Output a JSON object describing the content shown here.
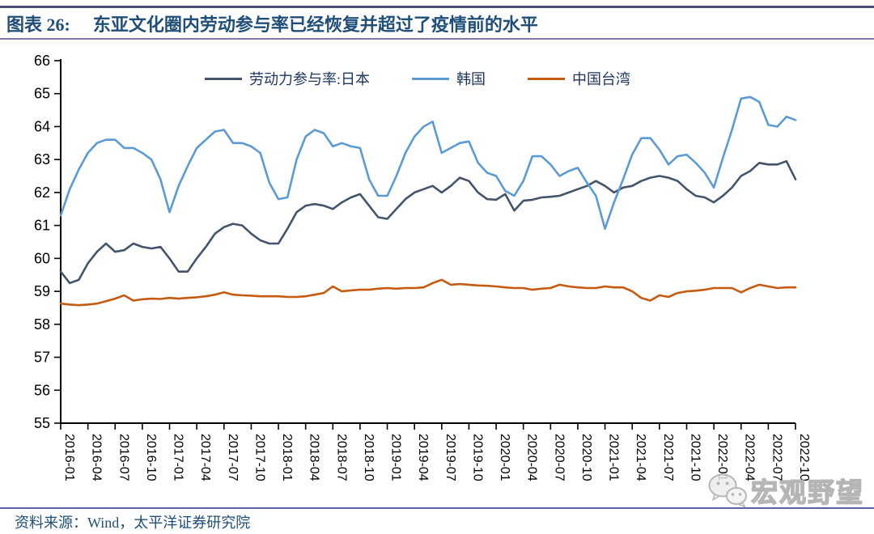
{
  "header": {
    "figure_label": "图表 26:",
    "title": "东亚文化圈内劳动参与率已经恢复并超过了疫情前的水平"
  },
  "footer": {
    "source": "资料来源：Wind，太平洋证券研究院"
  },
  "watermark": {
    "icon": "wechat-icon",
    "text": "宏观野望"
  },
  "theme": {
    "title-color": "#1F4E79",
    "divider-dark": "#4C4C78",
    "divider-light": "#7A7AA6",
    "divider-bottom": "#5D5DA0",
    "axis-color": "#000000",
    "watermark-color": "#ABABAB"
  },
  "chart_data": {
    "type": "line",
    "x_start": "2016-01",
    "x_end": "2022-10",
    "x_frequency": "monthly",
    "x_tick_labels": [
      "2016-01",
      "2016-04",
      "2016-07",
      "2016-10",
      "2017-01",
      "2017-04",
      "2017-07",
      "2017-10",
      "2018-01",
      "2018-04",
      "2018-07",
      "2018-10",
      "2019-01",
      "2019-04",
      "2019-07",
      "2019-10",
      "2020-01",
      "2020-04",
      "2020-07",
      "2020-10",
      "2021-01",
      "2021-04",
      "2021-07",
      "2021-10",
      "2022-01",
      "2022-04",
      "2022-07",
      "2022-10"
    ],
    "ylim": [
      55,
      66
    ],
    "y_tick_step": 1,
    "grid": false,
    "legend_position": "top",
    "series": [
      {
        "name": "劳动力参与率:日本",
        "color": "#44546A",
        "values": [
          59.6,
          59.25,
          59.35,
          59.85,
          60.2,
          60.45,
          60.2,
          60.25,
          60.45,
          60.35,
          60.3,
          60.35,
          60.0,
          59.6,
          59.6,
          60.0,
          60.35,
          60.75,
          60.95,
          61.05,
          61.0,
          60.75,
          60.55,
          60.45,
          60.45,
          60.9,
          61.4,
          61.6,
          61.65,
          61.6,
          61.5,
          61.7,
          61.85,
          61.95,
          61.6,
          61.25,
          61.2,
          61.5,
          61.8,
          62.0,
          62.1,
          62.2,
          62.0,
          62.2,
          62.45,
          62.35,
          62.0,
          61.8,
          61.78,
          61.95,
          61.45,
          61.75,
          61.78,
          61.85,
          61.87,
          61.9,
          62.0,
          62.1,
          62.2,
          62.35,
          62.2,
          62.0,
          62.15,
          62.2,
          62.35,
          62.45,
          62.5,
          62.45,
          62.35,
          62.1,
          61.9,
          61.85,
          61.7,
          61.9,
          62.15,
          62.5,
          62.65,
          62.9,
          62.85,
          62.85,
          62.95,
          62.4
        ]
      },
      {
        "name": "韩国",
        "color": "#5B9BD5",
        "values": [
          61.3,
          62.1,
          62.7,
          63.2,
          63.5,
          63.6,
          63.6,
          63.35,
          63.35,
          63.2,
          63.0,
          62.4,
          61.4,
          62.2,
          62.8,
          63.35,
          63.6,
          63.85,
          63.9,
          63.5,
          63.5,
          63.4,
          63.2,
          62.3,
          61.8,
          61.85,
          63.0,
          63.7,
          63.9,
          63.8,
          63.4,
          63.5,
          63.4,
          63.35,
          62.4,
          61.9,
          61.9,
          62.5,
          63.2,
          63.7,
          64.0,
          64.15,
          63.2,
          63.35,
          63.5,
          63.55,
          62.9,
          62.6,
          62.5,
          62.05,
          61.9,
          62.35,
          63.1,
          63.1,
          62.85,
          62.5,
          62.65,
          62.75,
          62.3,
          61.9,
          60.9,
          61.7,
          62.4,
          63.15,
          63.65,
          63.65,
          63.3,
          62.85,
          63.1,
          63.15,
          62.9,
          62.6,
          62.15,
          63.05,
          63.9,
          64.85,
          64.9,
          64.75,
          64.05,
          64.0,
          64.3,
          64.2
        ]
      },
      {
        "name": "中国台湾",
        "color": "#C55A11",
        "values": [
          58.63,
          58.6,
          58.58,
          58.6,
          58.63,
          58.7,
          58.78,
          58.88,
          58.72,
          58.76,
          58.78,
          58.77,
          58.8,
          58.78,
          58.8,
          58.82,
          58.85,
          58.9,
          58.97,
          58.9,
          58.88,
          58.87,
          58.85,
          58.85,
          58.85,
          58.83,
          58.83,
          58.85,
          58.9,
          58.95,
          59.15,
          59.0,
          59.03,
          59.05,
          59.05,
          59.08,
          59.1,
          59.08,
          59.1,
          59.1,
          59.12,
          59.25,
          59.35,
          59.2,
          59.22,
          59.2,
          59.18,
          59.17,
          59.15,
          59.12,
          59.1,
          59.1,
          59.05,
          59.08,
          59.1,
          59.2,
          59.15,
          59.12,
          59.1,
          59.1,
          59.15,
          59.12,
          59.12,
          59.0,
          58.8,
          58.72,
          58.88,
          58.83,
          58.95,
          59.0,
          59.02,
          59.05,
          59.1,
          59.1,
          59.1,
          58.97,
          59.1,
          59.2,
          59.15,
          59.1,
          59.12,
          59.12
        ]
      }
    ]
  }
}
